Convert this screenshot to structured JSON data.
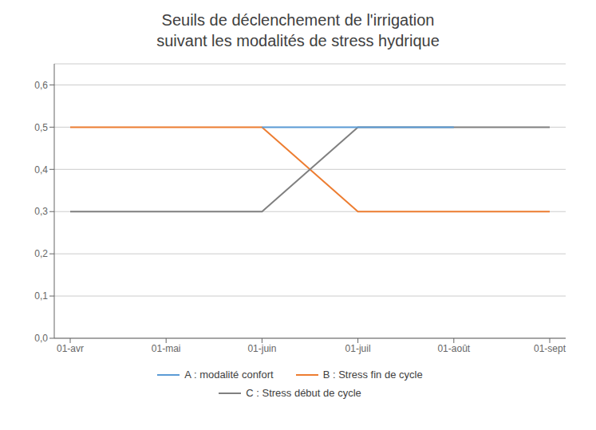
{
  "chart_data": {
    "type": "line",
    "title": "Seuils de déclenchement de l'irrigation\nsuivant les modalités de stress hydrique",
    "categories": [
      "01-avr",
      "01-mai",
      "01-juin",
      "01-juil",
      "01-août",
      "01-sept"
    ],
    "series": [
      {
        "name": "A : modalité confort",
        "color": "#5B9BD5",
        "values": [
          null,
          null,
          0.5,
          0.5,
          0.5,
          null
        ]
      },
      {
        "name": "B : Stress fin de cycle",
        "color": "#ED7D31",
        "values": [
          0.5,
          0.5,
          0.5,
          0.3,
          0.3,
          0.3
        ]
      },
      {
        "name": "C : Stress début de cycle",
        "color": "#808080",
        "values": [
          0.3,
          0.3,
          0.3,
          0.5,
          0.5,
          0.5
        ]
      }
    ],
    "ylim": [
      0,
      0.65
    ],
    "yticks": [
      {
        "value": 0.0,
        "label": "0,0"
      },
      {
        "value": 0.1,
        "label": "0,1"
      },
      {
        "value": 0.2,
        "label": "0,2"
      },
      {
        "value": 0.3,
        "label": "0,3"
      },
      {
        "value": 0.4,
        "label": "0,4"
      },
      {
        "value": 0.5,
        "label": "0,5"
      },
      {
        "value": 0.6,
        "label": "0,6"
      }
    ],
    "grid": true,
    "legend": "bottom"
  }
}
